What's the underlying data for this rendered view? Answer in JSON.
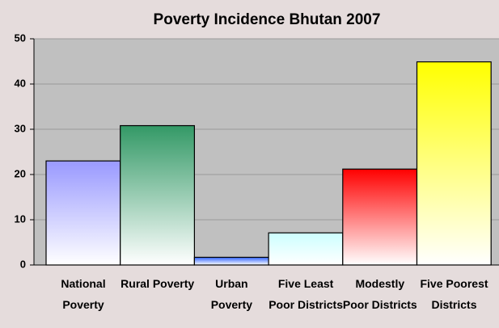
{
  "chart_data": {
    "type": "bar",
    "title": "Poverty Incidence Bhutan 2007",
    "categories": [
      "National Poverty",
      "Rural Poverty",
      "Urban Poverty",
      "Five Least Poor Districts",
      "Modestly Poor Districts",
      "Five Poorest Districts"
    ],
    "values": [
      23,
      30.8,
      1.7,
      7.1,
      21.2,
      44.9
    ],
    "colors": [
      "#9999ff",
      "#339966",
      "#3366ff",
      "#ccffff",
      "#ff0000",
      "#ffff00"
    ],
    "ylim": [
      0,
      50
    ],
    "yticks": [
      0,
      10,
      20,
      30,
      40,
      50
    ],
    "grid": true
  }
}
